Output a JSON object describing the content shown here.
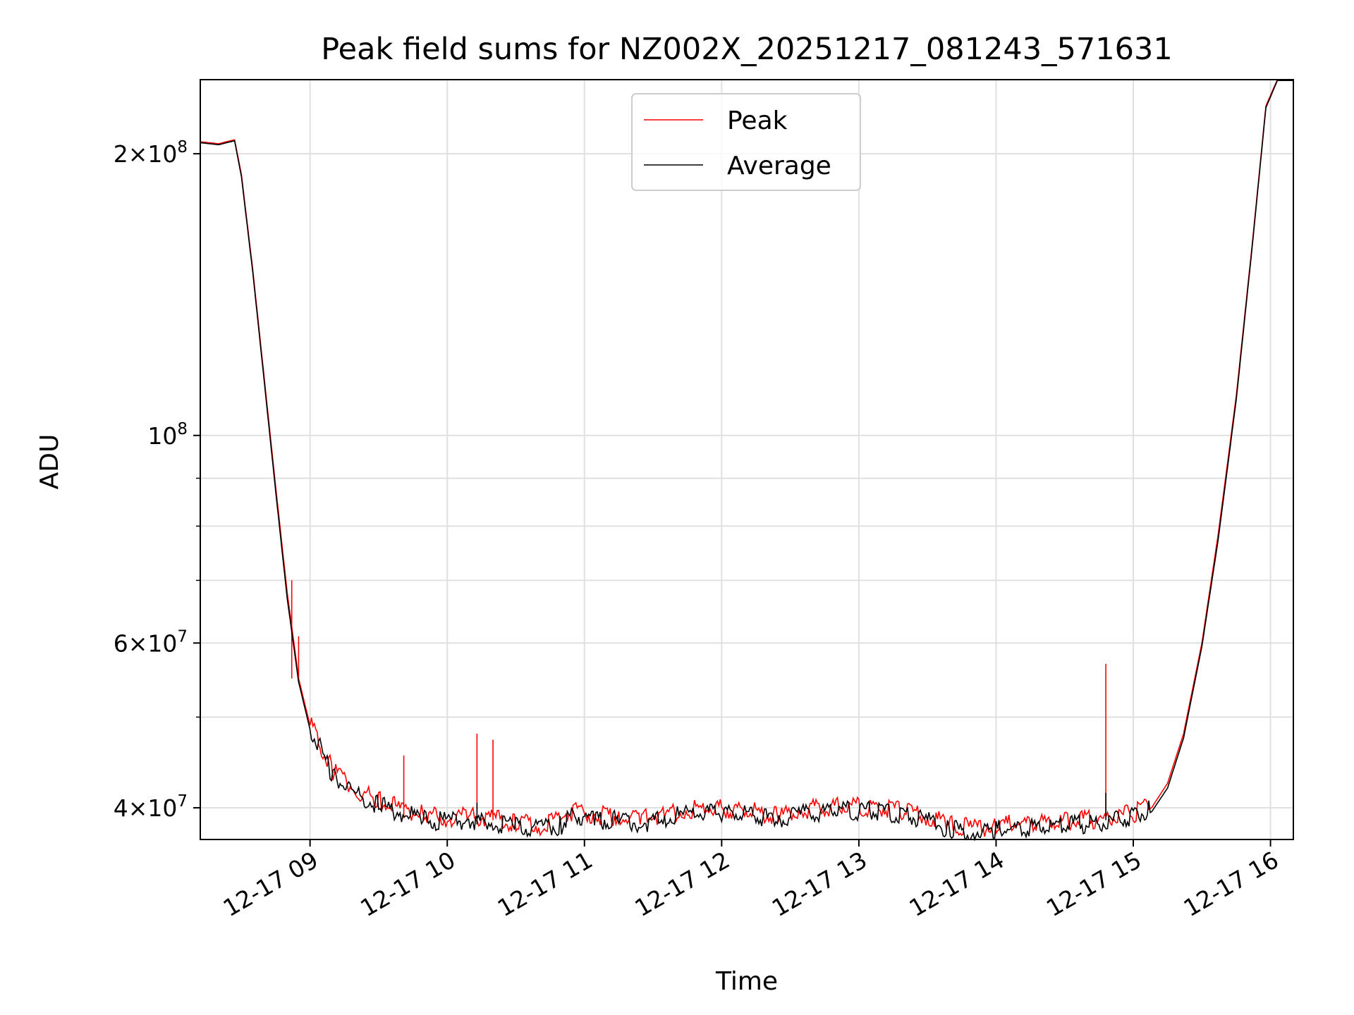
{
  "chart_data": {
    "type": "line",
    "title": "Peak field sums for NZ002X_20251217_081243_571631",
    "xlabel": "Time",
    "ylabel": "ADU",
    "y_scale": "log",
    "grid": true,
    "legend_placement": "upper center",
    "xlim": [
      "2025-12-17 08:12",
      "2025-12-17 16:10"
    ],
    "ylim": [
      37000000,
      240000000
    ],
    "x_ticks": [
      {
        "value": "2025-12-17 09:00",
        "label": "12-17 09"
      },
      {
        "value": "2025-12-17 10:00",
        "label": "12-17 10"
      },
      {
        "value": "2025-12-17 11:00",
        "label": "12-17 11"
      },
      {
        "value": "2025-12-17 12:00",
        "label": "12-17 12"
      },
      {
        "value": "2025-12-17 13:00",
        "label": "12-17 13"
      },
      {
        "value": "2025-12-17 14:00",
        "label": "12-17 14"
      },
      {
        "value": "2025-12-17 15:00",
        "label": "12-17 15"
      },
      {
        "value": "2025-12-17 16:00",
        "label": "12-17 16"
      }
    ],
    "y_ticks": [
      {
        "value": 40000000,
        "mantissa": "4",
        "exponent": "7"
      },
      {
        "value": 60000000,
        "mantissa": "6",
        "exponent": "7"
      },
      {
        "value": 100000000,
        "mantissa": "",
        "exponent": "8"
      },
      {
        "value": 200000000,
        "mantissa": "2",
        "exponent": "8"
      }
    ],
    "y_minor_ticks": [
      50000000,
      70000000,
      80000000,
      90000000
    ],
    "series": [
      {
        "name": "Peak",
        "color": "#ff0000",
        "points": [
          [
            "2025-12-17 08:12",
            206000000
          ],
          [
            "2025-12-17 08:20",
            205000000
          ],
          [
            "2025-12-17 08:27",
            207000000
          ],
          [
            "2025-12-17 08:30",
            190000000
          ],
          [
            "2025-12-17 08:35",
            150000000
          ],
          [
            "2025-12-17 08:40",
            115000000
          ],
          [
            "2025-12-17 08:45",
            88000000
          ],
          [
            "2025-12-17 08:50",
            68000000
          ],
          [
            "2025-12-17 08:55",
            55000000
          ],
          [
            "2025-12-17 09:00",
            49000000
          ],
          [
            "2025-12-17 09:10",
            43500000
          ],
          [
            "2025-12-17 09:20",
            41500000
          ],
          [
            "2025-12-17 09:30",
            40500000
          ],
          [
            "2025-12-17 09:40",
            39600000
          ],
          [
            "2025-12-17 09:50",
            39000000
          ],
          [
            "2025-12-17 10:00",
            38800000
          ],
          [
            "2025-12-17 10:10",
            38900000
          ],
          [
            "2025-12-17 10:20",
            38800000
          ],
          [
            "2025-12-17 10:30",
            38300000
          ],
          [
            "2025-12-17 10:40",
            38000000
          ],
          [
            "2025-12-17 10:50",
            38500000
          ],
          [
            "2025-12-17 10:55",
            39500000
          ],
          [
            "2025-12-17 11:05",
            39000000
          ],
          [
            "2025-12-17 11:15",
            38900000
          ],
          [
            "2025-12-17 11:25",
            38600000
          ],
          [
            "2025-12-17 11:35",
            39200000
          ],
          [
            "2025-12-17 11:45",
            39500000
          ],
          [
            "2025-12-17 12:00",
            39700000
          ],
          [
            "2025-12-17 12:15",
            39300000
          ],
          [
            "2025-12-17 12:25",
            38900000
          ],
          [
            "2025-12-17 12:35",
            39500000
          ],
          [
            "2025-12-17 12:50",
            39900000
          ],
          [
            "2025-12-17 13:05",
            39800000
          ],
          [
            "2025-12-17 13:20",
            39400000
          ],
          [
            "2025-12-17 13:30",
            38800000
          ],
          [
            "2025-12-17 13:40",
            38100000
          ],
          [
            "2025-12-17 13:50",
            37800000
          ],
          [
            "2025-12-17 14:00",
            38000000
          ],
          [
            "2025-12-17 14:15",
            38300000
          ],
          [
            "2025-12-17 14:30",
            38400000
          ],
          [
            "2025-12-17 14:45",
            38600000
          ],
          [
            "2025-12-17 15:00",
            39200000
          ],
          [
            "2025-12-17 15:08",
            40000000
          ],
          [
            "2025-12-17 15:15",
            42500000
          ],
          [
            "2025-12-17 15:22",
            48000000
          ],
          [
            "2025-12-17 15:30",
            60000000
          ],
          [
            "2025-12-17 15:37",
            78000000
          ],
          [
            "2025-12-17 15:45",
            110000000
          ],
          [
            "2025-12-17 15:52",
            160000000
          ],
          [
            "2025-12-17 15:58",
            225000000
          ],
          [
            "2025-12-17 16:03",
            240000000
          ],
          [
            "2025-12-17 16:10",
            240000000
          ]
        ],
        "spikes": [
          [
            "2025-12-17 08:52",
            70000000
          ],
          [
            "2025-12-17 08:55",
            61000000
          ],
          [
            "2025-12-17 09:41",
            45500000
          ],
          [
            "2025-12-17 10:13",
            48000000
          ],
          [
            "2025-12-17 10:20",
            47300000
          ],
          [
            "2025-12-17 14:48",
            57000000
          ]
        ]
      },
      {
        "name": "Average",
        "color": "#000000",
        "points": [
          [
            "2025-12-17 08:12",
            205500000
          ],
          [
            "2025-12-17 08:20",
            204500000
          ],
          [
            "2025-12-17 08:27",
            206500000
          ],
          [
            "2025-12-17 08:30",
            189000000
          ],
          [
            "2025-12-17 08:35",
            149000000
          ],
          [
            "2025-12-17 08:40",
            114000000
          ],
          [
            "2025-12-17 08:45",
            87000000
          ],
          [
            "2025-12-17 08:50",
            67000000
          ],
          [
            "2025-12-17 08:55",
            54500000
          ],
          [
            "2025-12-17 09:00",
            48500000
          ],
          [
            "2025-12-17 09:10",
            43000000
          ],
          [
            "2025-12-17 09:20",
            41000000
          ],
          [
            "2025-12-17 09:30",
            40000000
          ],
          [
            "2025-12-17 09:40",
            39200000
          ],
          [
            "2025-12-17 09:50",
            38600000
          ],
          [
            "2025-12-17 10:00",
            38400000
          ],
          [
            "2025-12-17 10:10",
            38500000
          ],
          [
            "2025-12-17 10:20",
            38400000
          ],
          [
            "2025-12-17 10:30",
            37900000
          ],
          [
            "2025-12-17 10:40",
            37600000
          ],
          [
            "2025-12-17 10:50",
            38100000
          ],
          [
            "2025-12-17 10:55",
            39100000
          ],
          [
            "2025-12-17 11:05",
            38600000
          ],
          [
            "2025-12-17 11:15",
            38500000
          ],
          [
            "2025-12-17 11:25",
            38200000
          ],
          [
            "2025-12-17 11:35",
            38800000
          ],
          [
            "2025-12-17 11:45",
            39100000
          ],
          [
            "2025-12-17 12:00",
            39300000
          ],
          [
            "2025-12-17 12:15",
            38900000
          ],
          [
            "2025-12-17 12:25",
            38500000
          ],
          [
            "2025-12-17 12:35",
            39100000
          ],
          [
            "2025-12-17 12:50",
            39500000
          ],
          [
            "2025-12-17 13:05",
            39400000
          ],
          [
            "2025-12-17 13:20",
            39000000
          ],
          [
            "2025-12-17 13:30",
            38400000
          ],
          [
            "2025-12-17 13:40",
            37700000
          ],
          [
            "2025-12-17 13:50",
            37400000
          ],
          [
            "2025-12-17 14:00",
            37600000
          ],
          [
            "2025-12-17 14:15",
            37900000
          ],
          [
            "2025-12-17 14:30",
            38000000
          ],
          [
            "2025-12-17 14:45",
            38200000
          ],
          [
            "2025-12-17 15:00",
            38800000
          ],
          [
            "2025-12-17 15:08",
            39600000
          ],
          [
            "2025-12-17 15:15",
            42000000
          ],
          [
            "2025-12-17 15:22",
            47500000
          ],
          [
            "2025-12-17 15:30",
            59500000
          ],
          [
            "2025-12-17 15:37",
            77000000
          ],
          [
            "2025-12-17 15:45",
            109000000
          ],
          [
            "2025-12-17 15:52",
            159000000
          ],
          [
            "2025-12-17 15:58",
            224000000
          ],
          [
            "2025-12-17 16:03",
            239500000
          ],
          [
            "2025-12-17 16:10",
            239500000
          ]
        ],
        "spikes": [
          [
            "2025-12-17 10:13",
            40500000
          ],
          [
            "2025-12-17 14:48",
            41500000
          ]
        ]
      }
    ]
  }
}
